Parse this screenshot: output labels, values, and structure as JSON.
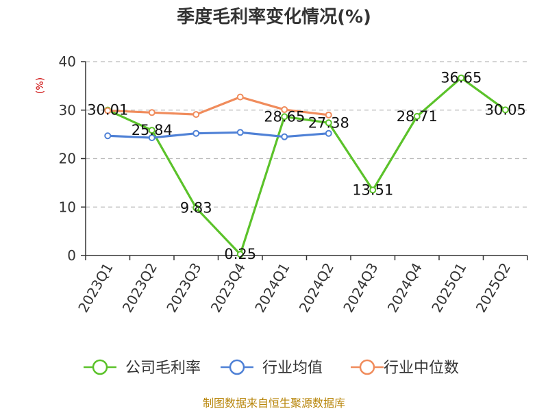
{
  "chart_data": {
    "type": "line",
    "title": "季度毛利率变化情况(%)",
    "ylabel": "(%)",
    "categories": [
      "2023Q1",
      "2023Q2",
      "2023Q3",
      "2023Q4",
      "2024Q1",
      "2024Q2",
      "2024Q3",
      "2024Q4",
      "2025Q1",
      "2025Q2"
    ],
    "ylim": [
      0,
      40
    ],
    "yticks": [
      0,
      10,
      20,
      30,
      40
    ],
    "grid": true,
    "legend_position": "bottom",
    "series": [
      {
        "name": "公司毛利率",
        "color": "#5bc22a",
        "values": [
          30.01,
          25.84,
          9.83,
          0.25,
          28.65,
          27.38,
          13.51,
          28.71,
          36.65,
          30.05
        ],
        "labels": [
          "30.01",
          "25.84",
          "9.83",
          "0.25",
          "28.65",
          "27.38",
          "13.51",
          "28.71",
          "36.65",
          "30.05"
        ]
      },
      {
        "name": "行业均值",
        "color": "#4f81d6",
        "values": [
          24.7,
          24.3,
          25.2,
          25.4,
          24.5,
          25.2,
          null,
          null,
          null,
          null
        ]
      },
      {
        "name": "行业中位数",
        "color": "#f08c5c",
        "values": [
          29.9,
          29.5,
          29.1,
          32.7,
          30.1,
          29.0,
          null,
          null,
          null,
          null
        ]
      }
    ]
  },
  "source": "制图数据来自恒生聚源数据库"
}
